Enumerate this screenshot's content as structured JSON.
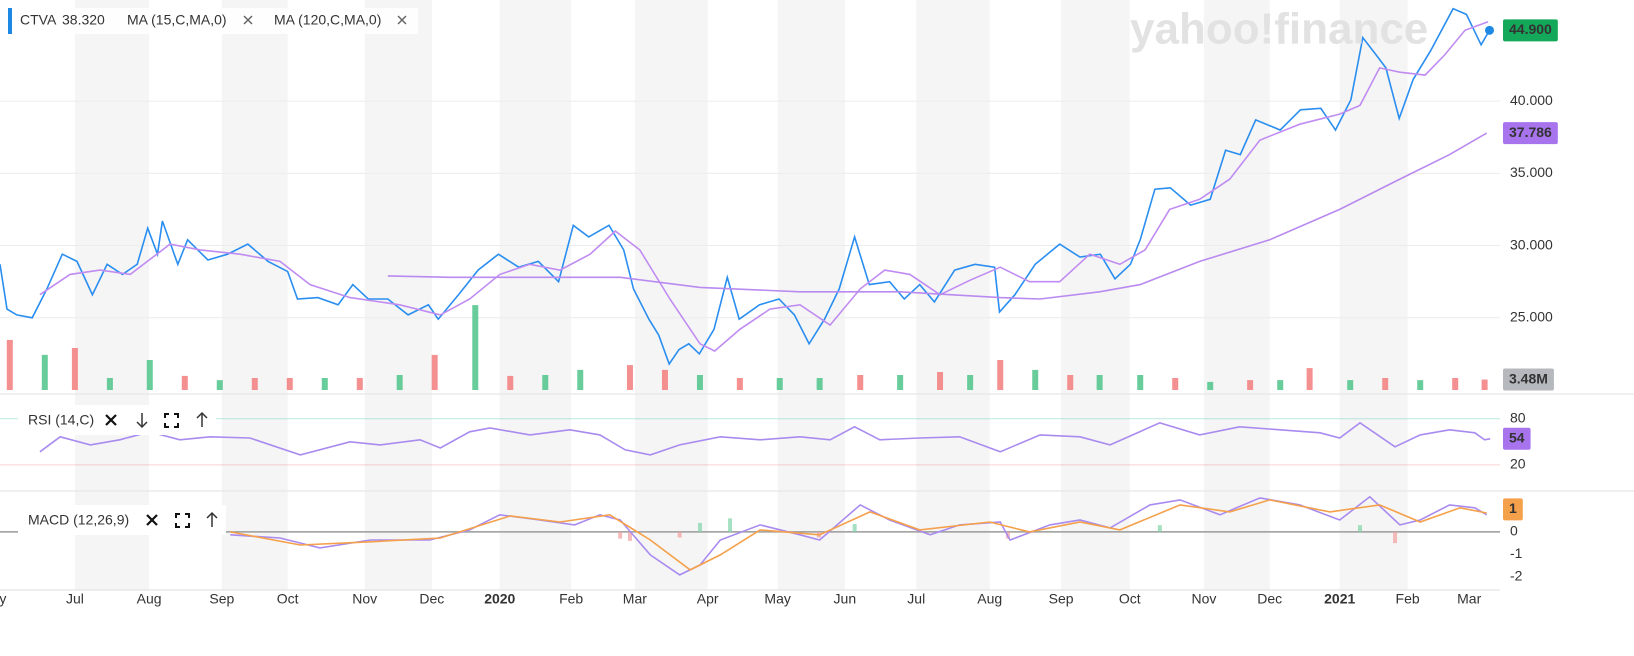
{
  "chart_data": [
    {
      "type": "line",
      "watermark": "yahoo!finance",
      "legend_value": "38.320",
      "xlim": [
        0,
        21.43
      ],
      "xticks": [
        {
          "value": 0.04,
          "label": "y"
        },
        {
          "value": 1.07,
          "label": "Jul"
        },
        {
          "value": 2.13,
          "label": "Aug"
        },
        {
          "value": 3.17,
          "label": "Sep"
        },
        {
          "value": 4.11,
          "label": "Oct"
        },
        {
          "value": 5.21,
          "label": "Nov"
        },
        {
          "value": 6.17,
          "label": "Dec"
        },
        {
          "value": 7.14,
          "label": "2020"
        },
        {
          "value": 8.16,
          "label": "Feb"
        },
        {
          "value": 9.07,
          "label": "Mar"
        },
        {
          "value": 10.11,
          "label": "Apr"
        },
        {
          "value": 11.11,
          "label": "May"
        },
        {
          "value": 12.07,
          "label": "Jun"
        },
        {
          "value": 13.09,
          "label": "Jul"
        },
        {
          "value": 14.14,
          "label": "Aug"
        },
        {
          "value": 15.16,
          "label": "Sep"
        },
        {
          "value": 16.14,
          "label": "Oct"
        },
        {
          "value": 17.2,
          "label": "Nov"
        },
        {
          "value": 18.14,
          "label": "Dec"
        },
        {
          "value": 19.14,
          "label": "2021"
        },
        {
          "value": 20.11,
          "label": "Feb"
        },
        {
          "value": 20.99,
          "label": "Mar"
        }
      ],
      "ylim": [
        20,
        47
      ],
      "yticks": [
        {
          "value": 25,
          "label": "25.000"
        },
        {
          "value": 30,
          "label": "30.000"
        },
        {
          "value": 35,
          "label": "35.000"
        },
        {
          "value": 40,
          "label": "40.000"
        }
      ],
      "grid": true,
      "series": [
        {
          "name": "CTVA",
          "color": "#2a8ef0",
          "label_color": "#14a85a",
          "x": [
            0,
            0.1,
            0.24,
            0.46,
            0.67,
            0.89,
            1.1,
            1.32,
            1.53,
            1.75,
            1.96,
            2.11,
            2.25,
            2.32,
            2.54,
            2.68,
            2.97,
            3.25,
            3.54,
            3.83,
            4.11,
            4.25,
            4.54,
            4.83,
            5.04,
            5.26,
            5.54,
            5.83,
            6.12,
            6.26,
            6.55,
            6.83,
            7.12,
            7.41,
            7.69,
            7.98,
            8.19,
            8.41,
            8.7,
            8.91,
            9.05,
            9.27,
            9.41,
            9.56,
            9.7,
            9.84,
            9.99,
            10.2,
            10.39,
            10.56,
            10.85,
            11.13,
            11.35,
            11.56,
            11.78,
            11.99,
            12.21,
            12.42,
            12.71,
            12.92,
            13.14,
            13.35,
            13.64,
            13.93,
            14.21,
            14.28,
            14.5,
            14.79,
            15.14,
            15.43,
            15.72,
            15.93,
            16.15,
            16.29,
            16.5,
            16.72,
            17.01,
            17.29,
            17.51,
            17.72,
            17.94,
            18.29,
            18.58,
            18.87,
            19.08,
            19.3,
            19.47,
            19.66,
            19.8,
            19.99,
            20.19,
            20.44,
            20.76,
            20.95,
            21.16,
            21.28
          ],
          "values": [
            28.7,
            25.6,
            25.2,
            25.0,
            27.0,
            29.4,
            28.9,
            26.6,
            28.7,
            28.0,
            28.7,
            31.2,
            29.4,
            31.7,
            28.7,
            30.4,
            29.0,
            29.4,
            30.1,
            28.9,
            28.2,
            26.3,
            26.4,
            25.9,
            27.3,
            26.3,
            26.3,
            25.2,
            25.9,
            24.9,
            26.6,
            28.3,
            29.4,
            28.5,
            28.9,
            27.5,
            31.4,
            30.6,
            31.4,
            29.7,
            27.0,
            24.9,
            23.8,
            21.8,
            22.8,
            23.2,
            22.5,
            24.2,
            27.8,
            24.9,
            25.9,
            26.3,
            25.2,
            23.2,
            24.9,
            27.0,
            30.6,
            27.3,
            27.5,
            26.3,
            27.3,
            26.1,
            28.3,
            28.7,
            28.5,
            25.4,
            26.6,
            28.7,
            30.1,
            29.2,
            29.4,
            27.7,
            28.7,
            30.4,
            33.9,
            34.0,
            32.8,
            33.2,
            36.6,
            36.3,
            38.7,
            38.0,
            39.4,
            39.5,
            38.0,
            40.1,
            44.4,
            43.2,
            42.3,
            38.8,
            41.5,
            43.5,
            46.4,
            46.0,
            43.9,
            44.9
          ],
          "last_label": {
            "value": 44.9,
            "label": "44.900"
          }
        },
        {
          "name": "MA (15,C,MA,0)",
          "color": "#c08cf2",
          "x": [
            0.57,
            1,
            1.43,
            1.86,
            2.43,
            2.86,
            3.43,
            4,
            4.43,
            5,
            5.71,
            6.29,
            6.71,
            7.14,
            7.57,
            8,
            8.43,
            8.79,
            9.14,
            9.57,
            10,
            10.21,
            10.57,
            11,
            11.43,
            11.86,
            12.29,
            12.64,
            13,
            13.43,
            13.86,
            14.29,
            14.71,
            15.14,
            15.57,
            16,
            16.36,
            16.71,
            17.14,
            17.57,
            18,
            18.57,
            19.14,
            19.43,
            19.71,
            20,
            20.36,
            20.64,
            20.93,
            21.26
          ],
          "values": [
            26.6,
            28.0,
            28.3,
            28.0,
            30.1,
            29.7,
            29.4,
            28.9,
            27.3,
            26.4,
            25.9,
            25.2,
            26.3,
            28.0,
            28.7,
            28.3,
            29.4,
            31.0,
            29.7,
            26.3,
            23.2,
            22.7,
            24.2,
            25.6,
            25.9,
            24.5,
            27.0,
            28.3,
            28.0,
            26.6,
            27.6,
            28.5,
            27.5,
            27.5,
            29.4,
            28.7,
            29.7,
            32.5,
            33.2,
            34.6,
            37.3,
            38.4,
            39.1,
            39.7,
            42.3,
            42.0,
            41.8,
            43.2,
            44.9,
            45.5
          ]
        },
        {
          "name": "MA (120,C,MA,0)",
          "color": "#b98af0",
          "label_color": "#a774ee",
          "x": [
            5.54,
            6.43,
            7.86,
            8.86,
            10,
            11.43,
            12.86,
            14.29,
            14.86,
            15.71,
            16.29,
            17.14,
            18.14,
            19.14,
            20,
            20.71,
            21.24
          ],
          "values": [
            27.9,
            27.8,
            27.8,
            27.8,
            27.1,
            26.8,
            26.8,
            26.4,
            26.3,
            26.8,
            27.3,
            28.9,
            30.4,
            32.5,
            34.6,
            36.3,
            37.786
          ],
          "last_label": {
            "value": 37.786,
            "label": "37.786"
          }
        }
      ],
      "volume": {
        "ylim": [
          0,
          30
        ],
        "x": [
          0.14,
          0.64,
          1.07,
          1.57,
          2.14,
          2.64,
          3.14,
          3.64,
          4.14,
          4.64,
          5.14,
          5.71,
          6.21,
          6.79,
          7.29,
          7.79,
          8.29,
          9,
          9.5,
          10,
          10.57,
          11.14,
          11.71,
          12.29,
          12.86,
          13.43,
          13.86,
          14.29,
          14.79,
          15.29,
          15.71,
          16.29,
          16.79,
          17.29,
          17.86,
          18.29,
          18.71,
          19.29,
          19.79,
          20.29,
          20.79,
          21.21
        ],
        "values": [
          16.7,
          11.7,
          14,
          4,
          10,
          4.7,
          3.3,
          4,
          4,
          4,
          4,
          5,
          11.7,
          28.3,
          4.7,
          5,
          6.7,
          8.3,
          6.7,
          5,
          4,
          4,
          4,
          5,
          5,
          6,
          5,
          10,
          6.7,
          5,
          5,
          5,
          4,
          2.7,
          3.3,
          3.3,
          7.3,
          3.3,
          4,
          3.3,
          4,
          3.48
        ],
        "colors": [
          "#f27c7c",
          "#4fc48a",
          "#f27c7c",
          "#4fc48a",
          "#4fc48a",
          "#f27c7c",
          "#4fc48a",
          "#f27c7c",
          "#f27c7c",
          "#4fc48a",
          "#f27c7c",
          "#4fc48a",
          "#f27c7c",
          "#4fc48a",
          "#f27c7c",
          "#4fc48a",
          "#4fc48a",
          "#f27c7c",
          "#f27c7c",
          "#4fc48a",
          "#f27c7c",
          "#4fc48a",
          "#4fc48a",
          "#f27c7c",
          "#4fc48a",
          "#f27c7c",
          "#4fc48a",
          "#f27c7c",
          "#4fc48a",
          "#f27c7c",
          "#4fc48a",
          "#4fc48a",
          "#f27c7c",
          "#4fc48a",
          "#f27c7c",
          "#4fc48a",
          "#f27c7c",
          "#4fc48a",
          "#f27c7c",
          "#4fc48a",
          "#f27c7c",
          "#f27c7c"
        ],
        "last_label": {
          "value": 3.48,
          "label": "3.48M"
        },
        "label_color": "#b5b8bd"
      }
    },
    {
      "type": "line",
      "ylim": [
        -10,
        107
      ],
      "yticks": [
        80,
        20
      ],
      "tick_colors": [
        "#56c7b5",
        "#f08a8a"
      ],
      "grid": true,
      "series": [
        {
          "name": "RSI (14,C)",
          "color": "#a98bf0",
          "label_color": "#a774ee",
          "x": [
            0.57,
            0.86,
            1.29,
            1.71,
            2.14,
            2.57,
            3,
            3.57,
            4.29,
            5,
            5.43,
            6,
            6.29,
            6.71,
            7,
            7.57,
            8.14,
            8.57,
            8.93,
            9.29,
            9.71,
            10.29,
            10.86,
            11.43,
            11.86,
            12.21,
            12.57,
            13.14,
            13.71,
            14.29,
            14.86,
            15.43,
            15.86,
            16.57,
            17.14,
            17.71,
            18.29,
            18.86,
            19.14,
            19.43,
            19.93,
            20.29,
            20.71,
            21.07,
            21.21,
            21.29
          ],
          "values": [
            37,
            56.5,
            46,
            52.6,
            63,
            52.6,
            56.5,
            55,
            33,
            50,
            46,
            52.6,
            42,
            63,
            68,
            59,
            65.6,
            59,
            39.6,
            33,
            46,
            56.5,
            52.6,
            56.5,
            52.6,
            69.5,
            52.6,
            55,
            56.5,
            37,
            59,
            56.5,
            46,
            74.8,
            59,
            69.5,
            65.6,
            61.7,
            55,
            74.8,
            43.5,
            59,
            65.6,
            61.7,
            52.6,
            54
          ],
          "last_label": 54
        }
      ]
    },
    {
      "type": "line",
      "ylim": [
        -2.36,
        1.64
      ],
      "yticks": [
        0,
        -1,
        -2
      ],
      "grid": false,
      "series": [
        {
          "name": "MACD (12,26,9)",
          "color": "#a98bf0",
          "x": [
            3.29,
            4,
            4.57,
            5.29,
            6.14,
            6.71,
            7.14,
            7.71,
            8.21,
            8.57,
            8.86,
            9.29,
            9.71,
            10,
            10.29,
            10.86,
            11.43,
            11.71,
            12.29,
            12.71,
            13.29,
            13.71,
            14.29,
            14.43,
            15,
            15.43,
            15.86,
            16.43,
            16.86,
            17.43,
            18,
            18.57,
            19.14,
            19.57,
            20,
            20.29,
            20.71,
            21.07,
            21.24
          ],
          "values": [
            -0.13,
            -0.27,
            -0.71,
            -0.36,
            -0.36,
            0.09,
            0.76,
            0.53,
            0.31,
            0.76,
            0.53,
            -1.02,
            -1.91,
            -1.47,
            -0.36,
            0.31,
            -0.13,
            -0.36,
            1.2,
            0.53,
            -0.13,
            0.31,
            0.44,
            -0.36,
            0.31,
            0.53,
            0.18,
            1.2,
            1.42,
            0.76,
            1.51,
            1.2,
            0.53,
            1.56,
            0.31,
            0.53,
            1.2,
            1.07,
            0.76
          ]
        },
        {
          "color": "#f5a04a",
          "label_color": "#f5a04a",
          "x": [
            3.29,
            4.29,
            5.29,
            6.29,
            7.29,
            8,
            8.71,
            9.29,
            9.86,
            10.29,
            10.86,
            11.71,
            12.43,
            13.14,
            14.14,
            14.71,
            15.43,
            16,
            16.86,
            17.57,
            18.14,
            19,
            19.71,
            20.29,
            20.86,
            21.24
          ],
          "values": [
            0,
            -0.58,
            -0.44,
            -0.27,
            0.71,
            0.44,
            0.76,
            -0.36,
            -1.69,
            -1.02,
            0.09,
            -0.13,
            0.89,
            0.09,
            0.44,
            0,
            0.44,
            0.09,
            1.2,
            0.89,
            1.42,
            0.89,
            1.2,
            0.44,
            1.07,
            0.84
          ],
          "last_label": 1
        }
      ],
      "histogram": {
        "x": [
          8.86,
          9.0,
          9.71,
          10.0,
          10.43,
          11.7,
          12.21,
          14.4,
          16.57,
          19.43,
          19.93
        ],
        "values": [
          -0.3,
          -0.4,
          -0.25,
          0.4,
          0.6,
          -0.25,
          0.35,
          -0.3,
          0.3,
          0.3,
          -0.5
        ]
      }
    }
  ]
}
